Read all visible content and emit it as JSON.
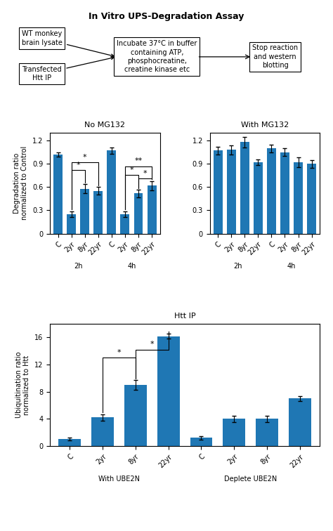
{
  "chart_data": [
    {
      "type": "flowchart",
      "title": "In Vitro UPS-Degradation Assay",
      "inputs": [
        [
          "WT monkey",
          "brain lysate"
        ],
        [
          "Transfected",
          "Htt IP"
        ]
      ],
      "steps": [
        [
          "Incubate 37°C in buffer",
          "containing ATP,",
          "phosphocreatine,",
          "creatine kinase etc"
        ],
        [
          "Stop reaction",
          "and western",
          "blotting"
        ]
      ]
    },
    {
      "type": "bar",
      "title": "No MG132",
      "categories": [
        "C",
        "2yr",
        "8yr",
        "22yr",
        "C",
        "2yr",
        "8yr",
        "22yr"
      ],
      "groups": [
        "2h",
        "4h"
      ],
      "values": [
        1.02,
        0.25,
        0.58,
        0.55,
        1.07,
        0.25,
        0.52,
        0.62
      ],
      "errors": [
        0.03,
        0.04,
        0.06,
        0.05,
        0.04,
        0.04,
        0.05,
        0.06
      ],
      "ylabel": "Degradation ratio\nnormalized to Control",
      "ylim": [
        0,
        1.3
      ],
      "yticks": [
        0,
        0.3,
        0.6,
        0.9,
        1.2
      ],
      "significance": [
        {
          "x1": 1,
          "x2": 2,
          "y": 0.82,
          "label": "*"
        },
        {
          "x1": 1,
          "x2": 3,
          "y": 0.92,
          "label": "*"
        },
        {
          "x1": 5,
          "x2": 6,
          "y": 0.76,
          "label": "*"
        },
        {
          "x1": 5,
          "x2": 7,
          "y": 0.87,
          "label": "**"
        },
        {
          "x1": 6,
          "x2": 7,
          "y": 0.71,
          "label": "*"
        }
      ]
    },
    {
      "type": "bar",
      "title": "With MG132",
      "categories": [
        "C",
        "2yr",
        "8yr",
        "22yr",
        "C",
        "2yr",
        "8yr",
        "22yr"
      ],
      "groups": [
        "2h",
        "4h"
      ],
      "values": [
        1.07,
        1.08,
        1.18,
        0.92,
        1.1,
        1.05,
        0.92,
        0.9
      ],
      "errors": [
        0.05,
        0.06,
        0.07,
        0.04,
        0.05,
        0.05,
        0.06,
        0.05
      ],
      "ylim": [
        0,
        1.3
      ],
      "yticks": [
        0,
        0.3,
        0.6,
        0.9,
        1.2
      ]
    },
    {
      "type": "bar",
      "title": "Htt IP",
      "categories": [
        "C",
        "2yr",
        "8yr",
        "22yr",
        "C",
        "2yr",
        "8yr",
        "22yr"
      ],
      "groups": [
        "With UBE2N",
        "Deplete UBE2N"
      ],
      "values": [
        1.0,
        4.2,
        9.0,
        16.2,
        1.2,
        4.0,
        4.0,
        7.0
      ],
      "errors": [
        0.2,
        0.5,
        0.7,
        0.4,
        0.3,
        0.5,
        0.5,
        0.4
      ],
      "ylabel": "Ubiquitination ratio\nnormalized to Htt",
      "ylim": [
        0,
        18
      ],
      "yticks": [
        0,
        4,
        8,
        12,
        16
      ],
      "significance": [
        {
          "x1": 1,
          "x2": 2,
          "y": 13.0,
          "label": "*"
        },
        {
          "x1": 2,
          "x2": 3,
          "y": 14.2,
          "label": "*"
        }
      ]
    }
  ]
}
